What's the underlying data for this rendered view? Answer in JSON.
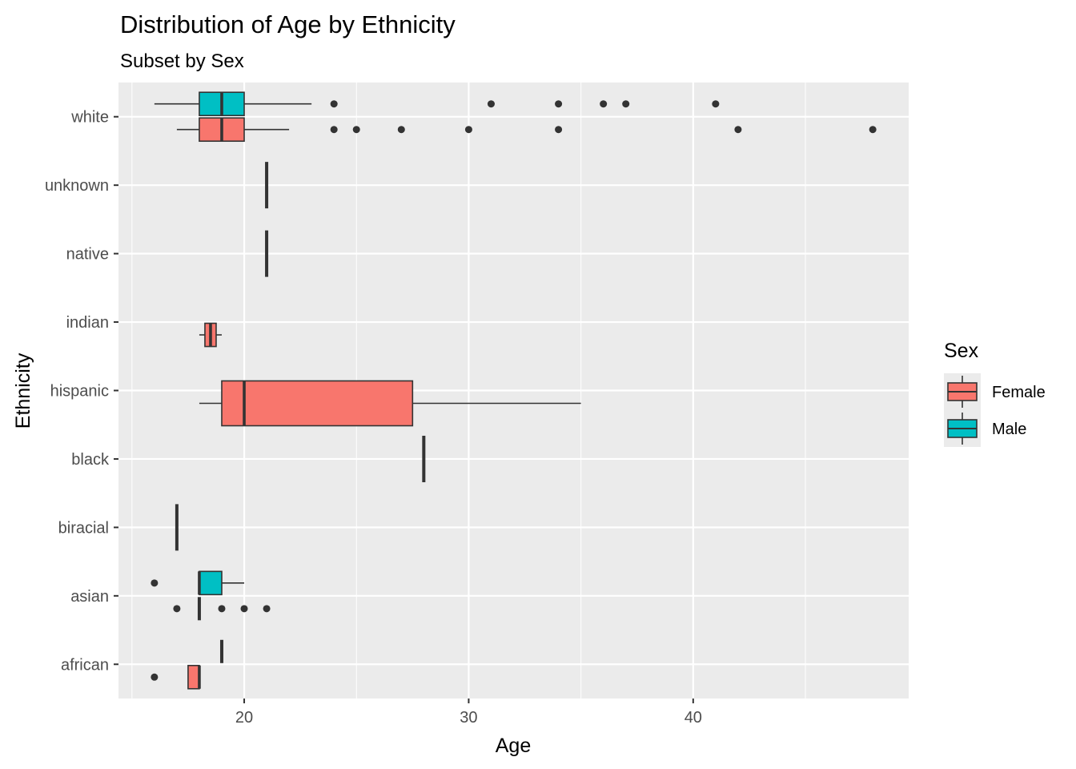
{
  "chart_data": {
    "type": "boxplot",
    "orientation": "horizontal",
    "title": "Distribution of Age by Ethnicity",
    "subtitle": "Subset by Sex",
    "xlabel": "Age",
    "ylabel": "Ethnicity",
    "xlim": [
      14.4,
      49.6
    ],
    "x_ticks": [
      20,
      30,
      40
    ],
    "grid": true,
    "background": "#ebebeb",
    "categories": [
      "african",
      "asian",
      "biracial",
      "black",
      "hispanic",
      "indian",
      "native",
      "unknown",
      "white"
    ],
    "legend": {
      "title": "Sex",
      "position": "right",
      "entries": [
        {
          "label": "Female",
          "color": "#f8766d"
        },
        {
          "label": "Male",
          "color": "#00bfc4"
        }
      ]
    },
    "series": [
      {
        "name": "Female",
        "color": "#f8766d",
        "boxes": [
          {
            "category": "african",
            "min": 17.5,
            "q1": 17.5,
            "median": 18,
            "q3": 18,
            "max": 18,
            "outliers": [
              16
            ]
          },
          {
            "category": "asian",
            "min": 18,
            "q1": 18,
            "median": 18,
            "q3": 18,
            "max": 18,
            "outliers": [
              17,
              19,
              20,
              21
            ]
          },
          {
            "category": "hispanic",
            "min": 18,
            "q1": 19,
            "median": 20,
            "q3": 27.5,
            "max": 35,
            "outliers": []
          },
          {
            "category": "indian",
            "min": 18,
            "q1": 18.25,
            "median": 18.5,
            "q3": 18.75,
            "max": 19,
            "outliers": []
          },
          {
            "category": "white",
            "min": 17,
            "q1": 18,
            "median": 19,
            "q3": 20,
            "max": 22,
            "outliers": [
              24,
              25,
              27,
              30,
              34,
              42,
              48
            ]
          }
        ]
      },
      {
        "name": "Male",
        "color": "#00bfc4",
        "boxes": [
          {
            "category": "african",
            "min": 19,
            "q1": 19,
            "median": 19,
            "q3": 19,
            "max": 19,
            "outliers": []
          },
          {
            "category": "asian",
            "min": 18,
            "q1": 18,
            "median": 18,
            "q3": 19,
            "max": 20,
            "outliers": [
              16
            ]
          },
          {
            "category": "white",
            "min": 16,
            "q1": 18,
            "median": 19,
            "q3": 20,
            "max": 23,
            "outliers": [
              24,
              31,
              34,
              36,
              37,
              41
            ]
          }
        ]
      },
      {
        "name": "",
        "color": "#f8766d",
        "boxes": [
          {
            "category": "biracial",
            "min": 17,
            "q1": 17,
            "median": 17,
            "q3": 17,
            "max": 17,
            "outliers": []
          },
          {
            "category": "black",
            "min": 28,
            "q1": 28,
            "median": 28,
            "q3": 28,
            "max": 28,
            "outliers": []
          },
          {
            "category": "native",
            "min": 21,
            "q1": 21,
            "median": 21,
            "q3": 21,
            "max": 21,
            "outliers": []
          },
          {
            "category": "unknown",
            "min": 21,
            "q1": 21,
            "median": 21,
            "q3": 21,
            "max": 21,
            "outliers": []
          }
        ]
      }
    ]
  }
}
